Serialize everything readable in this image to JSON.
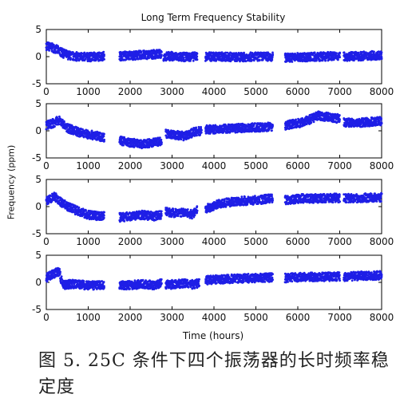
{
  "figure": {
    "title": "Long Term Frequency Stability",
    "xlabel": "Time (hours)",
    "ylabel": "Frequency (ppm)",
    "caption": "图 5. 25C 条件下四个振荡器的长时频率稳定度"
  },
  "chart_data": [
    {
      "type": "scatter",
      "title": "Long Term Frequency Stability",
      "xlim": [
        0,
        8000
      ],
      "ylim": [
        -5,
        5
      ],
      "xticks": [
        0,
        1000,
        2000,
        3000,
        4000,
        5000,
        6000,
        7000,
        8000
      ],
      "yticks": [
        -5,
        0,
        5
      ],
      "marker_color": "#1f1fe6",
      "series": [
        {
          "segments": [
            {
              "x": [
                0,
                200,
                400,
                600,
                800,
                1000,
                1200,
                1380
              ],
              "y": [
                2.0,
                1.5,
                0.6,
                0.1,
                0.0,
                -0.1,
                0.0,
                0.1
              ]
            },
            {
              "x": [
                1750,
                2000,
                2250,
                2500,
                2750
              ],
              "y": [
                0.1,
                0.2,
                0.3,
                0.4,
                0.5
              ]
            },
            {
              "x": [
                2800,
                3000,
                3200,
                3400,
                3600
              ],
              "y": [
                0.0,
                0.1,
                -0.1,
                0.0,
                0.0
              ]
            },
            {
              "x": [
                3800,
                4200,
                4600,
                5000,
                5400
              ],
              "y": [
                0.0,
                0.0,
                -0.1,
                0.0,
                0.0
              ]
            },
            {
              "x": [
                5700,
                6100,
                6500,
                7000
              ],
              "y": [
                -0.2,
                -0.1,
                0.0,
                0.1
              ]
            },
            {
              "x": [
                7100,
                7500,
                8000
              ],
              "y": [
                0.0,
                0.1,
                0.3
              ]
            }
          ]
        }
      ]
    },
    {
      "type": "scatter",
      "xlim": [
        0,
        8000
      ],
      "ylim": [
        -5,
        5
      ],
      "xticks": [
        0,
        1000,
        2000,
        3000,
        4000,
        5000,
        6000,
        7000,
        8000
      ],
      "yticks": [
        -5,
        0,
        5
      ],
      "marker_color": "#1f1fe6",
      "series": [
        {
          "segments": [
            {
              "x": [
                0,
                200,
                300,
                500,
                800,
                1100,
                1380
              ],
              "y": [
                1.0,
                1.5,
                2.0,
                0.5,
                -0.3,
                -0.8,
                -1.2
              ]
            },
            {
              "x": [
                1750,
                2000,
                2300,
                2550,
                2750
              ],
              "y": [
                -1.8,
                -2.2,
                -2.5,
                -2.2,
                -1.8
              ]
            },
            {
              "x": [
                2850,
                3100,
                3300,
                3500,
                3700
              ],
              "y": [
                -0.5,
                -0.8,
                -1.0,
                -0.3,
                0.0
              ]
            },
            {
              "x": [
                3800,
                4200,
                4600,
                5000,
                5400
              ],
              "y": [
                0.2,
                0.4,
                0.5,
                0.6,
                0.8
              ]
            },
            {
              "x": [
                5700,
                6100,
                6500,
                7000
              ],
              "y": [
                1.0,
                1.5,
                2.8,
                2.2
              ]
            },
            {
              "x": [
                7100,
                7500,
                8000
              ],
              "y": [
                1.5,
                1.5,
                1.8
              ]
            }
          ]
        }
      ]
    },
    {
      "type": "scatter",
      "xlim": [
        0,
        8000
      ],
      "ylim": [
        -5,
        5
      ],
      "xticks": [
        0,
        1000,
        2000,
        3000,
        4000,
        5000,
        6000,
        7000,
        8000
      ],
      "yticks": [
        -5,
        0,
        5
      ],
      "marker_color": "#1f1fe6",
      "series": [
        {
          "segments": [
            {
              "x": [
                0,
                200,
                400,
                600,
                800,
                1000,
                1380
              ],
              "y": [
                1.0,
                1.8,
                0.5,
                -0.3,
                -1.0,
                -1.5,
                -1.8
              ]
            },
            {
              "x": [
                1750,
                2000,
                2300,
                2550,
                2750
              ],
              "y": [
                -2.0,
                -1.8,
                -1.5,
                -1.8,
                -1.5
              ]
            },
            {
              "x": [
                2850,
                3100,
                3300,
                3500,
                3600
              ],
              "y": [
                -1.0,
                -1.2,
                -1.0,
                -1.5,
                -0.5
              ]
            },
            {
              "x": [
                3800,
                4100,
                4600,
                5000,
                5400
              ],
              "y": [
                -0.5,
                0.5,
                1.0,
                1.2,
                1.5
              ]
            },
            {
              "x": [
                5700,
                6100,
                6500,
                7000
              ],
              "y": [
                1.2,
                1.5,
                1.5,
                1.6
              ]
            },
            {
              "x": [
                7100,
                7500,
                8000
              ],
              "y": [
                1.5,
                1.6,
                1.7
              ]
            }
          ]
        }
      ]
    },
    {
      "type": "scatter",
      "xlabel": "Time (hours)",
      "xlim": [
        0,
        8000
      ],
      "ylim": [
        -5,
        5
      ],
      "xticks": [
        0,
        1000,
        2000,
        3000,
        4000,
        5000,
        6000,
        7000,
        8000
      ],
      "yticks": [
        -5,
        0,
        5
      ],
      "marker_color": "#1f1fe6",
      "series": [
        {
          "segments": [
            {
              "x": [
                0,
                150,
                300,
                400,
                600,
                900,
                1200,
                1380
              ],
              "y": [
                0.8,
                1.5,
                2.0,
                -0.5,
                -0.3,
                -0.5,
                -0.6,
                -0.4
              ]
            },
            {
              "x": [
                1750,
                2000,
                2300,
                2550,
                2750
              ],
              "y": [
                -0.6,
                -0.5,
                -0.3,
                -0.5,
                -0.2
              ]
            },
            {
              "x": [
                2850,
                3100,
                3300,
                3500,
                3650
              ],
              "y": [
                -0.5,
                -0.3,
                -0.2,
                -0.4,
                -0.1
              ]
            },
            {
              "x": [
                3800,
                4200,
                4600,
                5000,
                5400
              ],
              "y": [
                0.4,
                0.6,
                0.7,
                0.8,
                0.9
              ]
            },
            {
              "x": [
                5700,
                6100,
                6500,
                7000
              ],
              "y": [
                0.8,
                1.0,
                1.0,
                1.1
              ]
            },
            {
              "x": [
                7100,
                7500,
                8000
              ],
              "y": [
                1.0,
                1.2,
                1.3
              ]
            }
          ]
        }
      ]
    }
  ]
}
